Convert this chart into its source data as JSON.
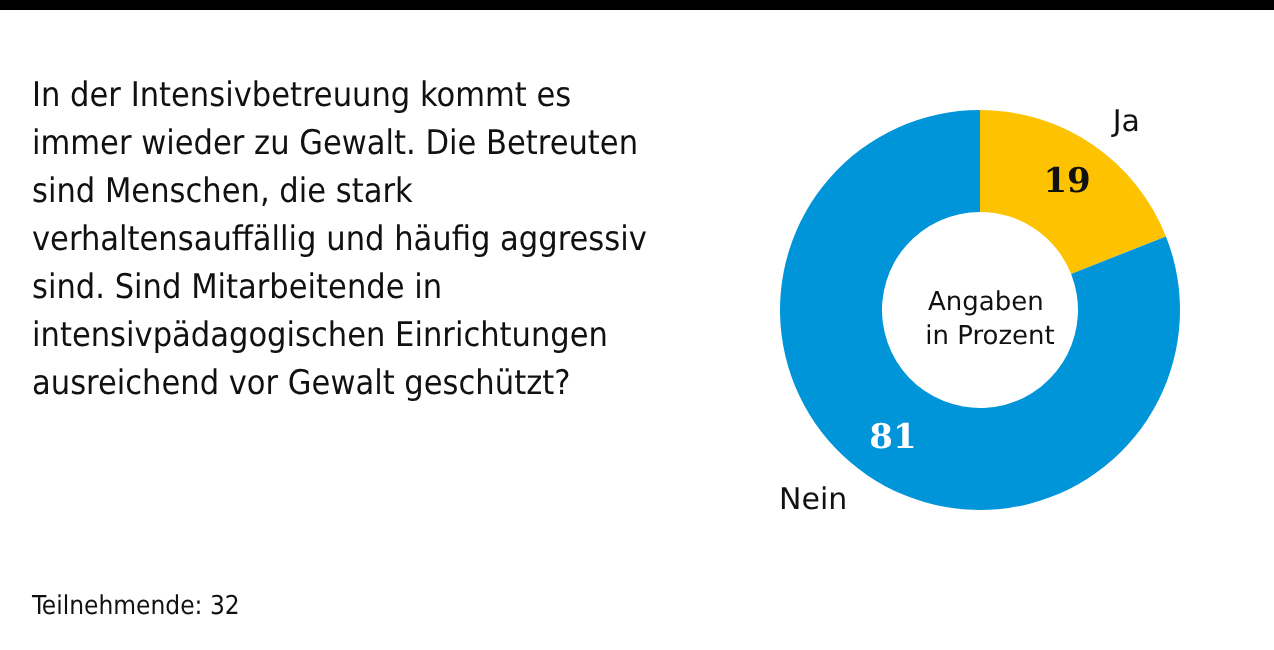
{
  "chart_data": {
    "type": "donut",
    "title": "In der Intensivbetreuung kommt es immer wieder zu Gewalt. Die Betreuten sind Menschen, die stark verhaltensauffällig und häufig aggressiv sind. Sind Mitarbeitende in intensivpädagogischen Einrichtungen ausreichend vor Gewalt geschützt?",
    "subtitle": "Angaben in Prozent",
    "categories": [
      "Ja",
      "Nein"
    ],
    "values": [
      19,
      81
    ],
    "colors": [
      "#fdc300",
      "#0095d9"
    ],
    "data_labels": true,
    "legend": false,
    "annotations": [
      "Teilnehmende: 32"
    ]
  }
}
